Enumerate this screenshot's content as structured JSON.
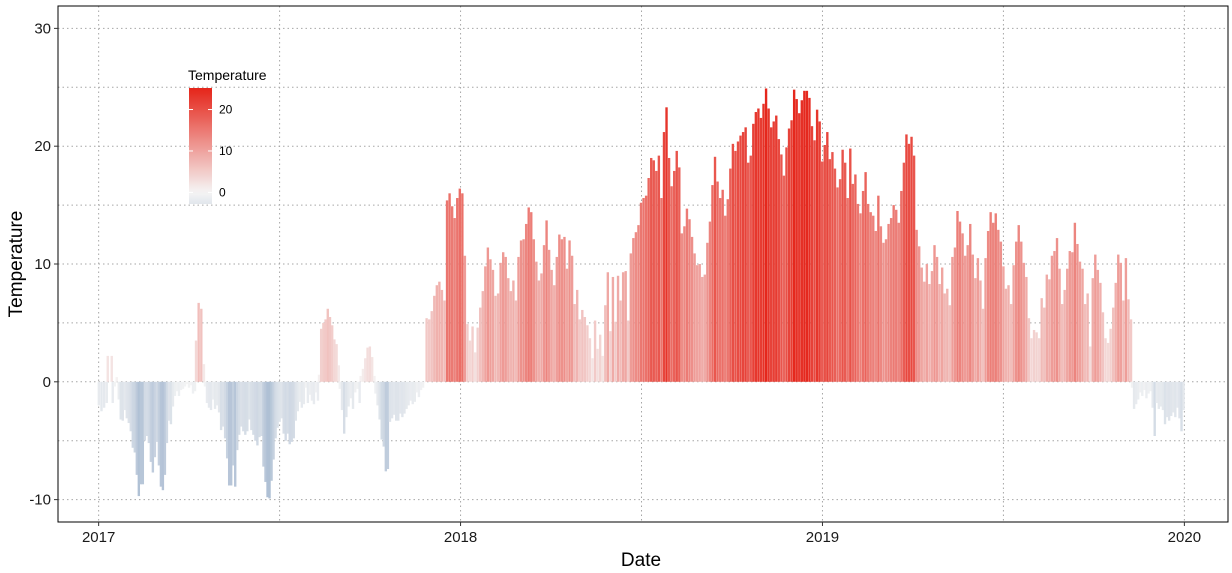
{
  "chart_data": {
    "type": "bar",
    "xlabel": "Date",
    "ylabel": "Temperature",
    "xlim": [
      "2016-11-21",
      "2020-02-14"
    ],
    "ylim": [
      -11.9,
      31.9
    ],
    "x_ticks": [
      "2017-01-01",
      "2018-01-01",
      "2019-01-01",
      "2020-01-01"
    ],
    "x_tick_labels": [
      "2017",
      "2018",
      "2019",
      "2020"
    ],
    "y_ticks": [
      -10,
      0,
      10,
      20,
      30
    ],
    "y_tick_labels": [
      "-10",
      "0",
      "10",
      "20",
      "30"
    ],
    "grid": true,
    "grid_style": "dotted",
    "legend": {
      "title": "Temperature",
      "placement": "top-left-inside",
      "type": "colorbar",
      "breaks": [
        0,
        10,
        20
      ],
      "break_labels": [
        "0",
        "10",
        "20"
      ],
      "limits": [
        -2.8,
        25.2
      ]
    },
    "color_scale": {
      "low": "#aebfd4",
      "mid": "#f5f5f5",
      "high": "#e5261b",
      "midpoint": 0,
      "low_limit": -10,
      "high_limit": 25
    },
    "bar_period_days": 2,
    "series": [
      {
        "start": "2017-01-01",
        "end": "2017-01-09",
        "values": [
          -2,
          -2.5,
          -2.2,
          -1.8
        ]
      },
      {
        "start": "2017-01-10",
        "end": "2017-01-14",
        "values": [
          2.2,
          2.2
        ]
      },
      {
        "start": "2017-01-15",
        "end": "2017-04-08",
        "values": [
          -1.8,
          -0.4,
          0.4,
          -1.5,
          -3.2,
          -3.3,
          -2.4,
          -3.1,
          -3.5,
          -4.2,
          -5.6,
          -6.0,
          -7.9,
          -9.7,
          -8.7,
          -8.7,
          -5.0,
          -4.6,
          -5.2,
          -6.8,
          -7.7,
          -6.4,
          -5.1,
          -7.1,
          -8.9,
          -9.2,
          -7.9,
          -5.2,
          -3.3,
          -3.6,
          -2.1,
          -1.2,
          -0.8,
          -1.2,
          -0.7,
          -0.6,
          -0.4,
          -0.2,
          -0.5,
          -0.3,
          -1.0,
          -0.8
        ]
      },
      {
        "start": "2017-04-09",
        "end": "2017-04-17",
        "values": [
          3.5,
          6.7,
          6.2,
          1.5
        ]
      },
      {
        "start": "2017-04-18",
        "end": "2017-08-10",
        "values": [
          -0.4,
          -1.8,
          -2.2,
          -2.4,
          -1.5,
          -2.3,
          -2.0,
          -2.6,
          -4.1,
          -3.8,
          -4.8,
          -6.5,
          -8.8,
          -8.8,
          -7.1,
          -8.9,
          -5.8,
          -4.5,
          -3.8,
          -4.2,
          -4.5,
          -4.2,
          -3.2,
          -4.1,
          -4.5,
          -5.0,
          -5.4,
          -4.7,
          -4.6,
          -7.2,
          -8.5,
          -9.8,
          -9.9,
          -8.4,
          -6.6,
          -4.8,
          -3.9,
          -3.4,
          -3.1,
          -4.4,
          -5.0,
          -4.4,
          -5.3,
          -5.1,
          -4.8,
          -3.3,
          -2.5,
          -1.7,
          -2.2,
          -1.9,
          -0.5,
          -1.8,
          -1.1,
          -1.6,
          -1.9,
          -0.9,
          -1.6
        ]
      },
      {
        "start": "2017-08-11",
        "end": "2017-08-31",
        "values": [
          0.6,
          4.5,
          5.0,
          5.3,
          6.2,
          5.5,
          4.8,
          3.6,
          3.2,
          1.4
        ]
      },
      {
        "start": "2017-09-01",
        "end": "2017-09-21",
        "values": [
          -0.6,
          -2.4,
          -4.4,
          -3.0,
          -2.1,
          -1.4,
          -2.3,
          -0.9,
          -0.6,
          -1.8
        ]
      },
      {
        "start": "2017-09-22",
        "end": "2017-10-06",
        "values": [
          0.5,
          1.1,
          2.0,
          2.9,
          3.0,
          2.1,
          0.5
        ]
      },
      {
        "start": "2017-10-07",
        "end": "2017-11-24",
        "values": [
          -1.0,
          -2.0,
          -3.2,
          -4.9,
          -5.5,
          -7.6,
          -7.4,
          -3.4,
          -3.1,
          -2.8,
          -3.3,
          -3.3,
          -2.7,
          -3.0,
          -2.7,
          -2.3,
          -2.0,
          -1.6,
          -1.9,
          -1.7,
          -0.9,
          -1.3,
          -0.7,
          -0.5
        ]
      },
      {
        "start": "2017-11-25",
        "end": "2019-11-08",
        "values": [
          0.0,
          5.4,
          5.3,
          6.0,
          7.3,
          8.2,
          8.5,
          7.8,
          6.9,
          15.4,
          16.0,
          14.9,
          13.9,
          15.6,
          16.4,
          16.0,
          10.7,
          4.9,
          3.5,
          4.7,
          2.5,
          4.6,
          6.3,
          7.7,
          9.8,
          11.4,
          10.4,
          9.5,
          7.3,
          7.5,
          10.1,
          11.0,
          10.6,
          8.8,
          7.7,
          8.6,
          6.9,
          10.6,
          12.0,
          12.1,
          13.4,
          14.8,
          14.4,
          12.1,
          10.2,
          8.6,
          9.2,
          11.6,
          13.7,
          11.2,
          9.5,
          8.2,
          10.6,
          12.5,
          12.1,
          12.3,
          9.6,
          12.0,
          10.7,
          6.6,
          7.8,
          5.3,
          6.1,
          5.5,
          4.8,
          3.7,
          2.0,
          5.2,
          2.8,
          4.0,
          2.2,
          6.5,
          9.3,
          4.3,
          8.9,
          5.1,
          9.0,
          6.9,
          9.3,
          9.4,
          5.2,
          10.9,
          12.2,
          12.7,
          13.3,
          15.2,
          15.6,
          15.8,
          17.3,
          19.0,
          18.8,
          17.9,
          19.2,
          15.6,
          21.2,
          23.3,
          19.0,
          16.6,
          17.9,
          19.6,
          18.2,
          12.6,
          13.2,
          14.7,
          13.8,
          12.3,
          10.9,
          9.9,
          10.0,
          8.9,
          9.1,
          11.8,
          13.6,
          16.7,
          19.1,
          17.0,
          15.6,
          16.3,
          14.1,
          15.5,
          18.1,
          20.2,
          19.6,
          20.4,
          20.9,
          21.2,
          21.6,
          18.6,
          19.2,
          21.9,
          22.9,
          23.2,
          22.4,
          23.6,
          24.9,
          23.2,
          21.6,
          22.1,
          22.6,
          20.6,
          19.3,
          17.5,
          19.9,
          21.5,
          22.2,
          24.8,
          24.0,
          22.8,
          23.9,
          24.7,
          24.7,
          24.1,
          21.7,
          20.5,
          23.1,
          22.1,
          18.7,
          20.1,
          21.2,
          18.9,
          19.5,
          18.1,
          16.5,
          17.2,
          19.7,
          18.6,
          15.6,
          19.8,
          16.8,
          17.6,
          15.1,
          14.3,
          16.2,
          17.8,
          15.1,
          14.4,
          14.1,
          12.8,
          15.8,
          13.2,
          11.8,
          12.1,
          13.4,
          13.9,
          15.0,
          14.6,
          13.5,
          16.2,
          18.6,
          21.0,
          20.2,
          20.8,
          19.2,
          12.9,
          11.5,
          9.7,
          8.5,
          10.0,
          8.3,
          9.4,
          11.6,
          10.6,
          8.3,
          9.7,
          7.5,
          7.9,
          6.5,
          10.6,
          11.4,
          14.5,
          13.6,
          12.6,
          10.7,
          11.6,
          13.4,
          10.8,
          8.8,
          10.5,
          8.6,
          6.2,
          10.5,
          12.8,
          14.4,
          13.5,
          14.3,
          12.9,
          11.9,
          9.8,
          7.9,
          8.2,
          6.6,
          9.9,
          11.9,
          13.3,
          11.9,
          10.1,
          8.9,
          5.4,
          3.7,
          4.4,
          4.2,
          3.7,
          7.1,
          6.3,
          9.1,
          8.7,
          10.7,
          11.1,
          12.2,
          9.6,
          6.6,
          7.8,
          9.6,
          11.1,
          11.0,
          13.5,
          11.7,
          10.2,
          9.6,
          6.6,
          7.5,
          3.0,
          8.8,
          10.8,
          9.5,
          8.4,
          5.9,
          3.7,
          3.3,
          4.5,
          6.3,
          8.4,
          10.8,
          10.1,
          6.9,
          10.5,
          7.0,
          5.3
        ]
      },
      {
        "start": "2019-11-09",
        "end": "2019-12-31",
        "values": [
          -0.5,
          -2.3,
          -1.9,
          -1.5,
          -0.9,
          -1.2,
          -0.7,
          -1.4,
          -1.0,
          -0.8,
          -2.2,
          -4.6,
          -1.8,
          -2.3,
          -2.1,
          -2.4,
          -3.6,
          -3.0,
          -3.3,
          -2.9,
          -2.6,
          -3.0,
          -2.2,
          -3.1,
          -4.2,
          -2.4
        ]
      }
    ]
  }
}
